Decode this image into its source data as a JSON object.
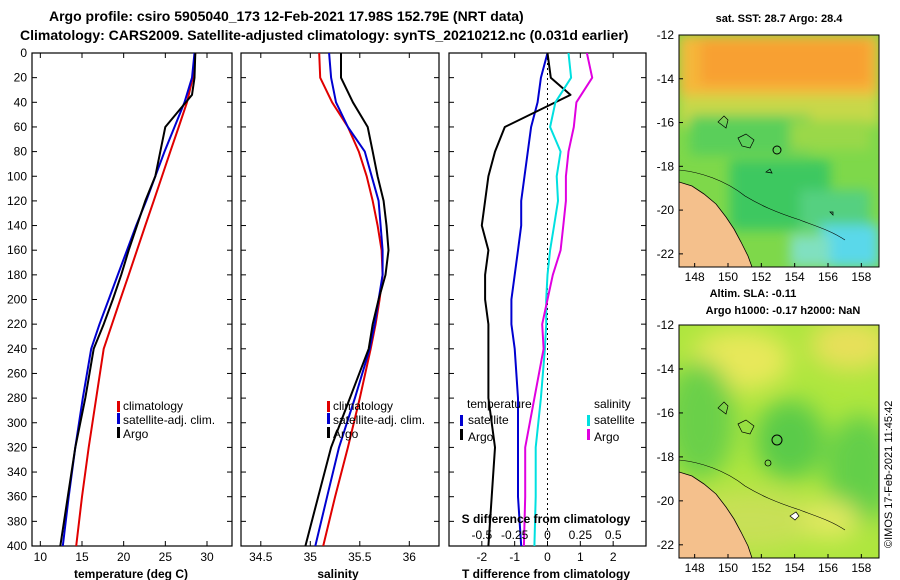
{
  "header": {
    "line1": "Argo profile: csiro 5905040_173 12-Feb-2021 17.98S 152.79E (NRT data)",
    "line2": "Climatology: CARS2009. Satellite-adjusted climatology: synTS_20210212.nc (0.031d earlier)"
  },
  "colors": {
    "climatology": "#e00000",
    "satellite": "#0000d0",
    "argo": "#000000",
    "sal_sat": "#00e0e0",
    "sal_argo": "#e000e0",
    "land": "#f4c08c"
  },
  "chart_data": [
    {
      "id": "temperature",
      "type": "line",
      "xlabel": "temperature (deg C)",
      "ylabel": "",
      "xlim": [
        9,
        33
      ],
      "ylim": [
        400,
        0
      ],
      "xticks": [
        10,
        15,
        20,
        25,
        30
      ],
      "yticks": [
        0,
        20,
        40,
        60,
        80,
        100,
        120,
        140,
        160,
        180,
        200,
        220,
        240,
        260,
        280,
        300,
        320,
        340,
        360,
        380,
        400
      ],
      "legend": [
        "climatology",
        "satellite-adj. clim.",
        "Argo"
      ],
      "series": [
        {
          "name": "climatology",
          "color": "#e00000",
          "x": [
            28.6,
            28.3,
            27.6,
            26.6,
            25.6,
            24.6,
            23.6,
            22.6,
            21.6,
            20.6,
            19.6,
            18.6,
            17.6,
            16.7,
            15.8,
            15.0,
            14.3
          ],
          "y": [
            0,
            20,
            40,
            60,
            80,
            100,
            120,
            140,
            160,
            180,
            200,
            220,
            240,
            280,
            320,
            360,
            400
          ]
        },
        {
          "name": "satellite-adj. clim.",
          "color": "#0000d0",
          "x": [
            28.5,
            28.2,
            27.3,
            26.1,
            24.9,
            23.8,
            22.7,
            21.5,
            20.4,
            19.3,
            18.2,
            17.1,
            16.1,
            15.1,
            14.2,
            13.4,
            12.7
          ],
          "y": [
            0,
            20,
            40,
            60,
            80,
            100,
            120,
            140,
            160,
            180,
            200,
            220,
            240,
            280,
            320,
            360,
            400
          ]
        },
        {
          "name": "Argo",
          "color": "#000000",
          "x": [
            28.6,
            28.5,
            28.2,
            25.0,
            24.4,
            23.8,
            22.6,
            21.6,
            20.6,
            19.7,
            18.7,
            17.6,
            16.4,
            15.4,
            14.2,
            13.3,
            12.4
          ],
          "y": [
            0,
            20,
            34,
            60,
            80,
            100,
            120,
            140,
            160,
            180,
            200,
            220,
            240,
            280,
            320,
            360,
            400
          ]
        }
      ]
    },
    {
      "id": "salinity",
      "type": "line",
      "xlabel": "salinity",
      "ylabel": "",
      "xlim": [
        34.3,
        36.3
      ],
      "ylim": [
        400,
        0
      ],
      "xticks": [
        34.5,
        35,
        35.5,
        36
      ],
      "xtick_labels": [
        "34.5",
        "35",
        "35.5",
        "36"
      ],
      "legend": [
        "climatology",
        "satellite-adj. clim.",
        "Argo"
      ],
      "series": [
        {
          "name": "climatology",
          "color": "#e00000",
          "x": [
            35.09,
            35.1,
            35.22,
            35.38,
            35.49,
            35.57,
            35.63,
            35.68,
            35.72,
            35.73,
            35.7,
            35.66,
            35.61,
            35.5,
            35.38,
            35.25,
            35.13
          ],
          "y": [
            0,
            20,
            40,
            60,
            80,
            100,
            120,
            140,
            160,
            180,
            200,
            220,
            240,
            280,
            320,
            360,
            400
          ]
        },
        {
          "name": "satellite-adj. clim.",
          "color": "#0000d0",
          "x": [
            35.19,
            35.21,
            35.26,
            35.38,
            35.55,
            35.62,
            35.69,
            35.71,
            35.73,
            35.73,
            35.69,
            35.65,
            35.6,
            35.45,
            35.29,
            35.17,
            35.05
          ],
          "y": [
            0,
            20,
            40,
            60,
            80,
            100,
            120,
            140,
            160,
            180,
            200,
            220,
            240,
            280,
            320,
            360,
            400
          ]
        },
        {
          "name": "Argo",
          "color": "#000000",
          "x": [
            35.31,
            35.31,
            35.43,
            35.58,
            35.63,
            35.68,
            35.74,
            35.77,
            35.79,
            35.76,
            35.69,
            35.63,
            35.59,
            35.4,
            35.21,
            35.08,
            34.95
          ],
          "y": [
            0,
            20,
            40,
            60,
            80,
            100,
            120,
            140,
            160,
            180,
            200,
            220,
            240,
            280,
            320,
            360,
            400
          ]
        }
      ]
    },
    {
      "id": "differences",
      "type": "line",
      "xlabel": "T difference from climatology",
      "xlabel_top": "S difference from climatology",
      "xlim": [
        -3,
        3
      ],
      "ylim": [
        400,
        0
      ],
      "xticks": [
        -2,
        -1,
        0,
        1,
        2
      ],
      "xtick_labels": [
        "-2",
        "-1",
        "0",
        "1",
        "2"
      ],
      "s_xlim": [
        -0.75,
        0.75
      ],
      "s_xticks": [
        -0.5,
        -0.25,
        0,
        0.25,
        0.5
      ],
      "s_xtick_labels": [
        "-0.5",
        "-0.25",
        "0",
        "0.25",
        "0.5"
      ],
      "legend_temperature": {
        "title": "temperature",
        "items": [
          "satellite",
          "Argo"
        ]
      },
      "legend_salinity": {
        "title": "salinity",
        "items": [
          "satellite",
          "Argo"
        ]
      },
      "series": [
        {
          "name": "temperature satellite",
          "color": "#0000d0",
          "axis": "T",
          "x": [
            0,
            -0.2,
            -0.3,
            -0.5,
            -0.6,
            -0.7,
            -0.8,
            -0.8,
            -0.9,
            -1.0,
            -1.1,
            -1.1,
            -1.0,
            -0.9,
            -0.9,
            -0.9,
            -0.8
          ],
          "y": [
            0,
            20,
            40,
            60,
            80,
            100,
            120,
            140,
            160,
            180,
            200,
            220,
            240,
            280,
            320,
            360,
            400
          ]
        },
        {
          "name": "temperature Argo",
          "color": "#000000",
          "axis": "T",
          "x": [
            0,
            0.1,
            0.7,
            -1.3,
            -1.6,
            -1.8,
            -1.9,
            -2.0,
            -1.8,
            -1.9,
            -1.9,
            -1.8,
            -1.8,
            -1.8,
            -1.6,
            -1.7,
            -1.8
          ],
          "y": [
            0,
            20,
            34,
            60,
            80,
            100,
            120,
            140,
            160,
            180,
            200,
            220,
            240,
            280,
            320,
            360,
            400
          ]
        },
        {
          "name": "salinity satellite",
          "color": "#00e0e0",
          "axis": "S",
          "x": [
            0.16,
            0.18,
            0.06,
            0.02,
            0.1,
            0.07,
            0.08,
            0.05,
            0.02,
            0.0,
            -0.01,
            -0.01,
            -0.02,
            -0.05,
            -0.09,
            -0.09,
            -0.1
          ],
          "y": [
            0,
            20,
            40,
            60,
            80,
            100,
            120,
            140,
            160,
            180,
            200,
            220,
            240,
            280,
            320,
            360,
            400
          ]
        },
        {
          "name": "salinity Argo",
          "color": "#e000e0",
          "axis": "S",
          "x": [
            0.3,
            0.34,
            0.22,
            0.2,
            0.16,
            0.14,
            0.14,
            0.12,
            0.1,
            0.04,
            0.0,
            -0.04,
            -0.03,
            -0.1,
            -0.17,
            -0.17,
            -0.18
          ],
          "y": [
            0,
            20,
            40,
            60,
            80,
            100,
            120,
            140,
            160,
            180,
            200,
            220,
            240,
            280,
            320,
            360,
            400
          ]
        }
      ]
    }
  ],
  "maps": [
    {
      "title": "sat. SST: 28.7 Argo: 28.4",
      "x_ticks": [
        "148",
        "150",
        "152",
        "154",
        "156",
        "158"
      ],
      "y_ticks": [
        "-12",
        "-14",
        "-16",
        "-18",
        "-20",
        "-22"
      ]
    },
    {
      "title_line1": "Altim. SLA: -0.11",
      "title_line2": "Argo h1000: -0.17 h2000: NaN",
      "x_ticks": [
        "148",
        "150",
        "152",
        "154",
        "156",
        "158"
      ],
      "y_ticks": [
        "-12",
        "-14",
        "-16",
        "-18",
        "-20",
        "-22"
      ]
    }
  ],
  "credit": "©IMOS 17-Feb-2021 11:45:42"
}
